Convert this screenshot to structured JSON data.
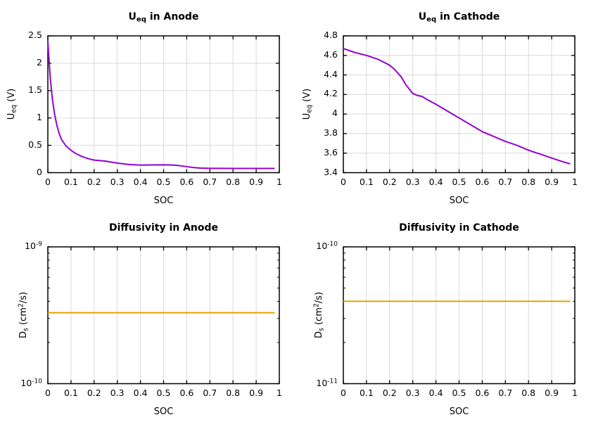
{
  "figure": {
    "background": "#ffffff",
    "grid_color": "#d9d9d9",
    "border_color": "#000000",
    "tick_color": "#000000",
    "text_color": "#000000",
    "legend": "none",
    "grid": "on"
  },
  "chart_data": [
    {
      "id": "ueq-anode",
      "type": "line",
      "title_text": "U_eq in Anode",
      "title_parts": [
        [
          "U"
        ],
        [
          "eq",
          "sub"
        ],
        [
          " in Anode"
        ]
      ],
      "xlabel": "SOC",
      "ylabel_text": "U_eq (V)",
      "ylabel_parts": [
        [
          "U"
        ],
        [
          "eq",
          "sub"
        ],
        [
          " (V)"
        ]
      ],
      "xlim": [
        0,
        1
      ],
      "x_ticks": [
        0,
        0.1,
        0.2,
        0.3,
        0.4,
        0.5,
        0.6,
        0.7,
        0.8,
        0.9,
        1
      ],
      "x_tick_labels": [
        "0",
        "0.1",
        "0.2",
        "0.3",
        "0.4",
        "0.5",
        "0.6",
        "0.7",
        "0.8",
        "0.9",
        "1"
      ],
      "yscale": "linear",
      "ylim": [
        0,
        2.5
      ],
      "y_ticks": [
        0,
        0.5,
        1,
        1.5,
        2,
        2.5
      ],
      "y_tick_labels_parts": [
        [
          [
            "0"
          ]
        ],
        [
          [
            "0.5"
          ]
        ],
        [
          [
            "1"
          ]
        ],
        [
          [
            "1.5"
          ]
        ],
        [
          [
            "2"
          ]
        ],
        [
          [
            "2.5"
          ]
        ]
      ],
      "line_color": "#9400d3",
      "line_width": 2,
      "series": [
        {
          "name": "equilibrium-potential-anode",
          "x": [
            0,
            0.01,
            0.02,
            0.03,
            0.04,
            0.05,
            0.06,
            0.08,
            0.1,
            0.12,
            0.15,
            0.18,
            0.2,
            0.25,
            0.3,
            0.35,
            0.4,
            0.45,
            0.5,
            0.53,
            0.56,
            0.6,
            0.63,
            0.66,
            0.7,
            0.75,
            0.8,
            0.85,
            0.9,
            0.95,
            0.98
          ],
          "y": [
            2.4,
            1.75,
            1.33,
            1.05,
            0.85,
            0.7,
            0.6,
            0.48,
            0.41,
            0.35,
            0.29,
            0.25,
            0.23,
            0.21,
            0.175,
            0.15,
            0.138,
            0.141,
            0.143,
            0.141,
            0.133,
            0.11,
            0.093,
            0.083,
            0.079,
            0.078,
            0.077,
            0.077,
            0.077,
            0.077,
            0.077
          ]
        }
      ]
    },
    {
      "id": "ueq-cathode",
      "type": "line",
      "title_text": "U_eq in Cathode",
      "title_parts": [
        [
          "U"
        ],
        [
          "eq",
          "sub"
        ],
        [
          " in Cathode"
        ]
      ],
      "xlabel": "SOC",
      "ylabel_text": "U_eq (V)",
      "ylabel_parts": [
        [
          "U"
        ],
        [
          "eq",
          "sub"
        ],
        [
          " (V)"
        ]
      ],
      "xlim": [
        0,
        1
      ],
      "x_ticks": [
        0,
        0.1,
        0.2,
        0.3,
        0.4,
        0.5,
        0.6,
        0.7,
        0.8,
        0.9,
        1
      ],
      "x_tick_labels": [
        "0",
        "0.1",
        "0.2",
        "0.3",
        "0.4",
        "0.5",
        "0.6",
        "0.7",
        "0.8",
        "0.9",
        "1"
      ],
      "yscale": "linear",
      "ylim": [
        3.4,
        4.8
      ],
      "y_ticks": [
        3.4,
        3.6,
        3.8,
        4,
        4.2,
        4.4,
        4.6,
        4.8
      ],
      "y_tick_labels_parts": [
        [
          [
            "3.4"
          ]
        ],
        [
          [
            "3.6"
          ]
        ],
        [
          [
            "3.8"
          ]
        ],
        [
          [
            "4"
          ]
        ],
        [
          [
            "4.2"
          ]
        ],
        [
          [
            "4.4"
          ]
        ],
        [
          [
            "4.6"
          ]
        ],
        [
          [
            "4.8"
          ]
        ]
      ],
      "line_color": "#9400d3",
      "line_width": 2,
      "series": [
        {
          "name": "equilibrium-potential-cathode",
          "x": [
            0,
            0.05,
            0.1,
            0.15,
            0.2,
            0.22,
            0.25,
            0.27,
            0.3,
            0.32,
            0.34,
            0.36,
            0.4,
            0.45,
            0.5,
            0.55,
            0.6,
            0.65,
            0.7,
            0.75,
            0.8,
            0.85,
            0.9,
            0.95,
            0.98
          ],
          "y": [
            4.67,
            4.63,
            4.6,
            4.56,
            4.5,
            4.46,
            4.38,
            4.3,
            4.21,
            4.19,
            4.18,
            4.15,
            4.1,
            4.03,
            3.96,
            3.89,
            3.82,
            3.77,
            3.72,
            3.68,
            3.63,
            3.59,
            3.55,
            3.51,
            3.49
          ]
        }
      ]
    },
    {
      "id": "diffusivity-anode",
      "type": "line",
      "title_text": "Diffusivity in Anode",
      "title_parts": [
        [
          "Diffusivity in Anode"
        ]
      ],
      "xlabel": "SOC",
      "ylabel_text": "D_s (cm^2/s)",
      "ylabel_parts": [
        [
          "D"
        ],
        [
          "s",
          "sub"
        ],
        [
          " (cm"
        ],
        [
          "2",
          "sup"
        ],
        [
          "/s)"
        ]
      ],
      "xlim": [
        0,
        1
      ],
      "x_ticks": [
        0,
        0.1,
        0.2,
        0.3,
        0.4,
        0.5,
        0.6,
        0.7,
        0.8,
        0.9,
        1
      ],
      "x_tick_labels": [
        "0",
        "0.1",
        "0.2",
        "0.3",
        "0.4",
        "0.5",
        "0.6",
        "0.7",
        "0.8",
        "0.9",
        "1"
      ],
      "yscale": "log",
      "ylim": [
        1e-10,
        1e-09
      ],
      "y_ticks": [
        1e-10,
        1e-09
      ],
      "y_tick_labels_parts": [
        [
          [
            "10"
          ],
          [
            "-10",
            "sup"
          ]
        ],
        [
          [
            "10"
          ],
          [
            "-9",
            "sup"
          ]
        ]
      ],
      "y_minor_ticks": [
        2e-10,
        3e-10,
        4e-10,
        5e-10,
        6e-10,
        7e-10,
        8e-10,
        9e-10
      ],
      "line_color": "#e69f00",
      "line_width": 2,
      "constant_value": 3.3e-10,
      "series": [
        {
          "name": "solid-diffusivity-anode",
          "x": [
            0,
            0.98
          ],
          "y": [
            3.3e-10,
            3.3e-10
          ]
        }
      ]
    },
    {
      "id": "diffusivity-cathode",
      "type": "line",
      "title_text": "Diffusivity in Cathode",
      "title_parts": [
        [
          "Diffusivity in Cathode"
        ]
      ],
      "xlabel": "SOC",
      "ylabel_text": "D_s (cm^2/s)",
      "ylabel_parts": [
        [
          "D"
        ],
        [
          "s",
          "sub"
        ],
        [
          " (cm"
        ],
        [
          "2",
          "sup"
        ],
        [
          "/s)"
        ]
      ],
      "xlim": [
        0,
        1
      ],
      "x_ticks": [
        0,
        0.1,
        0.2,
        0.3,
        0.4,
        0.5,
        0.6,
        0.7,
        0.8,
        0.9,
        1
      ],
      "x_tick_labels": [
        "0",
        "0.1",
        "0.2",
        "0.3",
        "0.4",
        "0.5",
        "0.6",
        "0.7",
        "0.8",
        "0.9",
        "1"
      ],
      "yscale": "log",
      "ylim": [
        1e-11,
        1e-10
      ],
      "y_ticks": [
        1e-11,
        1e-10
      ],
      "y_tick_labels_parts": [
        [
          [
            "10"
          ],
          [
            "-11",
            "sup"
          ]
        ],
        [
          [
            "10"
          ],
          [
            "-10",
            "sup"
          ]
        ]
      ],
      "y_minor_ticks": [
        2e-11,
        3e-11,
        4e-11,
        5e-11,
        6e-11,
        7e-11,
        8e-11,
        9e-11
      ],
      "line_color": "#e69f00",
      "line_width": 2,
      "constant_value": 4e-11,
      "series": [
        {
          "name": "solid-diffusivity-cathode",
          "x": [
            0,
            0.98
          ],
          "y": [
            4e-11,
            4e-11
          ]
        }
      ]
    }
  ]
}
